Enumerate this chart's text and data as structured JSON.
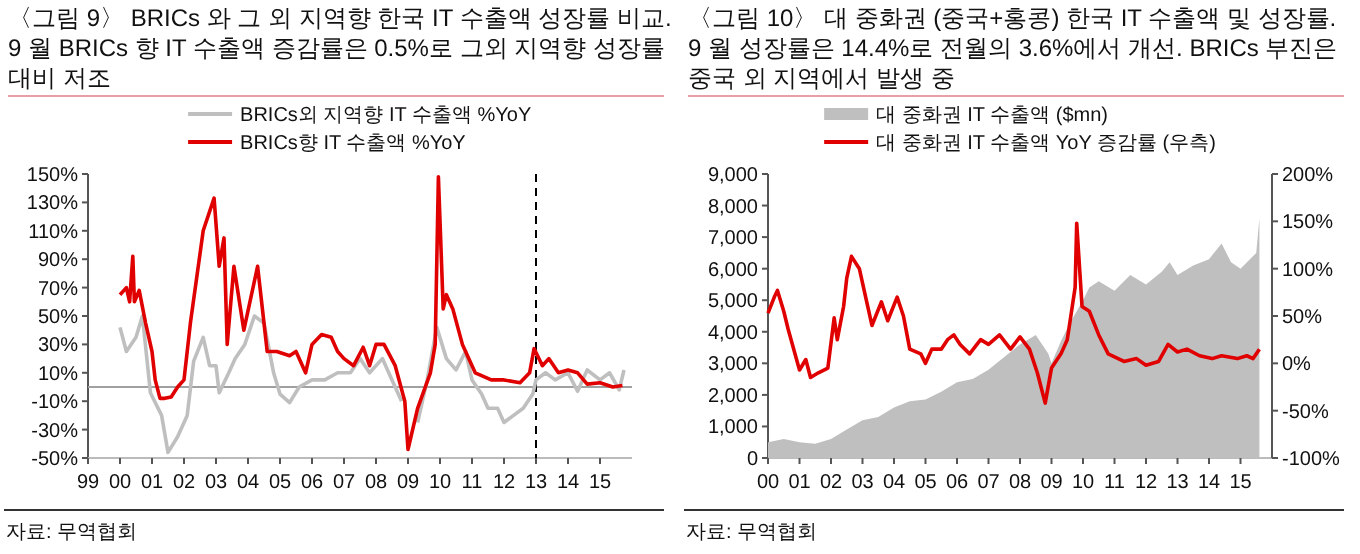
{
  "chart_data": [
    {
      "type": "line",
      "title": "〈그림 9〉 BRICs 와 그 외 지역향 한국 IT 수출액 성장률 비교. 9 월 BRICs 향 IT 수출액 증감률은 0.5%로 그외 지역향 성장률 대비 저조",
      "annotations": [
        "자료: 무역협회"
      ],
      "legend": "top",
      "xlim": [
        1999,
        2016
      ],
      "xticks": [
        {
          "value": 1999,
          "label": "99"
        },
        {
          "value": 2000,
          "label": "00"
        },
        {
          "value": 2001,
          "label": "01"
        },
        {
          "value": 2002,
          "label": "02"
        },
        {
          "value": 2003,
          "label": "03"
        },
        {
          "value": 2004,
          "label": "04"
        },
        {
          "value": 2005,
          "label": "05"
        },
        {
          "value": 2006,
          "label": "06"
        },
        {
          "value": 2007,
          "label": "07"
        },
        {
          "value": 2008,
          "label": "08"
        },
        {
          "value": 2009,
          "label": "09"
        },
        {
          "value": 2010,
          "label": "10"
        },
        {
          "value": 2011,
          "label": "11"
        },
        {
          "value": 2012,
          "label": "12"
        },
        {
          "value": 2013,
          "label": "13"
        },
        {
          "value": 2014,
          "label": "14"
        },
        {
          "value": 2015,
          "label": "15"
        }
      ],
      "ylim": [
        -50,
        150
      ],
      "yticks": [
        {
          "value": -50,
          "label": "-50%"
        },
        {
          "value": -30,
          "label": "-30%"
        },
        {
          "value": -10,
          "label": "-10%"
        },
        {
          "value": 10,
          "label": "10%"
        },
        {
          "value": 30,
          "label": "30%"
        },
        {
          "value": 50,
          "label": "50%"
        },
        {
          "value": 70,
          "label": "70%"
        },
        {
          "value": 90,
          "label": "90%"
        },
        {
          "value": 110,
          "label": "110%"
        },
        {
          "value": 130,
          "label": "130%"
        },
        {
          "value": 150,
          "label": "150%"
        }
      ],
      "ref_lines": [
        {
          "axis": "y",
          "value": 0,
          "color": "#a0a0a0"
        },
        {
          "axis": "x",
          "value": 2013,
          "color": "#000000",
          "line_style": "dashed"
        }
      ],
      "series": [
        {
          "name": "BRICs외 지역향 IT 수출액 %YoY",
          "color": "#bfbfbf",
          "x": [
            2000.0,
            2000.2,
            2000.5,
            2000.7,
            2000.95,
            2001.3,
            2001.5,
            2001.8,
            2002.1,
            2002.3,
            2002.6,
            2002.8,
            2003.0,
            2003.1,
            2003.4,
            2003.6,
            2003.9,
            2004.2,
            2004.5,
            2004.8,
            2005.0,
            2005.3,
            2005.6,
            2006.0,
            2006.4,
            2006.8,
            2007.2,
            2007.5,
            2007.8,
            2008.2,
            2008.5,
            2008.8,
            2009.0,
            2009.3,
            2009.6,
            2009.9,
            2010.2,
            2010.5,
            2010.8,
            2011.0,
            2011.3,
            2011.5,
            2011.8,
            2012.0,
            2012.3,
            2012.6,
            2012.9,
            2013.0,
            2013.3,
            2013.6,
            2014.0,
            2014.3,
            2014.6,
            2015.0,
            2015.3,
            2015.6,
            2015.75
          ],
          "values": [
            42,
            25,
            35,
            50,
            -4,
            -20,
            -46,
            -35,
            -20,
            18,
            35,
            15,
            15,
            -4,
            10,
            20,
            30,
            50,
            45,
            10,
            -5,
            -11,
            0,
            5,
            5,
            10,
            10,
            20,
            10,
            20,
            5,
            -10,
            null,
            -25,
            5,
            42,
            20,
            12,
            25,
            5,
            -5,
            -15,
            -15,
            -25,
            -20,
            -15,
            -5,
            5,
            10,
            5,
            10,
            -3,
            12,
            5,
            10,
            -2,
            12
          ]
        },
        {
          "name": "BRICs향 IT 수출액 %YoY",
          "color": "#e00000",
          "x": [
            2000.0,
            2000.2,
            2000.3,
            2000.4,
            2000.45,
            2000.6,
            2000.8,
            2001.0,
            2001.1,
            2001.25,
            2001.4,
            2001.6,
            2001.8,
            2002.0,
            2002.2,
            2002.6,
            2002.94,
            2003.1,
            2003.25,
            2003.35,
            2003.56,
            2003.87,
            2004.3,
            2004.6,
            2004.9,
            2005.3,
            2005.5,
            2005.8,
            2006.0,
            2006.3,
            2006.6,
            2006.8,
            2007.0,
            2007.3,
            2007.6,
            2007.8,
            2008.0,
            2008.25,
            2008.6,
            2008.9,
            2009.0,
            2009.3,
            2009.7,
            2009.85,
            2009.95,
            2010.1,
            2010.2,
            2010.4,
            2010.7,
            2011.1,
            2011.3,
            2011.6,
            2012.0,
            2012.5,
            2012.8,
            2012.94,
            2013.2,
            2013.4,
            2013.7,
            2014.0,
            2014.3,
            2014.6,
            2015.0,
            2015.4,
            2015.7
          ],
          "values": [
            65,
            70,
            60,
            92,
            60,
            68,
            45,
            25,
            5,
            -8,
            -8,
            -7,
            0,
            5,
            45,
            110,
            133,
            85,
            105,
            30,
            85,
            40,
            85,
            25,
            25,
            22,
            25,
            10,
            30,
            37,
            35,
            25,
            20,
            15,
            28,
            15,
            30,
            30,
            15,
            -10,
            -44,
            -15,
            10,
            30,
            148,
            55,
            65,
            55,
            30,
            10,
            8,
            5,
            5,
            3,
            10,
            27,
            15,
            20,
            10,
            12,
            10,
            2,
            3,
            0,
            1
          ]
        }
      ]
    },
    {
      "type": "line",
      "title": "〈그림 10〉 대 중화권 (중국+홍콩) 한국 IT 수출액 및 성장률. 9 월 성장률은 14.4%로 전월의 3.6%에서 개선. BRICs 부진은 중국 외 지역에서 발생 중",
      "annotations": [
        "자료: 무역협회"
      ],
      "legend": "top",
      "xlim": [
        2000,
        2016
      ],
      "xticks": [
        {
          "value": 2000,
          "label": "00"
        },
        {
          "value": 2001,
          "label": "01"
        },
        {
          "value": 2002,
          "label": "02"
        },
        {
          "value": 2003,
          "label": "03"
        },
        {
          "value": 2004,
          "label": "04"
        },
        {
          "value": 2005,
          "label": "05"
        },
        {
          "value": 2006,
          "label": "06"
        },
        {
          "value": 2007,
          "label": "07"
        },
        {
          "value": 2008,
          "label": "08"
        },
        {
          "value": 2009,
          "label": "09"
        },
        {
          "value": 2010,
          "label": "10"
        },
        {
          "value": 2011,
          "label": "11"
        },
        {
          "value": 2012,
          "label": "12"
        },
        {
          "value": 2013,
          "label": "13"
        },
        {
          "value": 2014,
          "label": "14"
        },
        {
          "value": 2015,
          "label": "15"
        }
      ],
      "ylim": [
        0,
        9000
      ],
      "yticks": [
        {
          "value": 0,
          "label": "0"
        },
        {
          "value": 1000,
          "label": "1,000"
        },
        {
          "value": 2000,
          "label": "2,000"
        },
        {
          "value": 3000,
          "label": "3,000"
        },
        {
          "value": 4000,
          "label": "4,000"
        },
        {
          "value": 5000,
          "label": "5,000"
        },
        {
          "value": 6000,
          "label": "6,000"
        },
        {
          "value": 7000,
          "label": "7,000"
        },
        {
          "value": 8000,
          "label": "8,000"
        },
        {
          "value": 9000,
          "label": "9,000"
        }
      ],
      "y2lim": [
        -100,
        200
      ],
      "y2ticks": [
        {
          "value": -100,
          "label": "-100%"
        },
        {
          "value": -50,
          "label": "-50%"
        },
        {
          "value": 0,
          "label": "0%"
        },
        {
          "value": 50,
          "label": "50%"
        },
        {
          "value": 100,
          "label": "100%"
        },
        {
          "value": 150,
          "label": "150%"
        },
        {
          "value": 200,
          "label": "200%"
        }
      ],
      "series": [
        {
          "name": "대 중화권 IT 수출액 ($mn)",
          "type": "area",
          "color": "#bfbfbf",
          "x": [
            2000.0,
            2000.5,
            2001.0,
            2001.5,
            2002.0,
            2002.5,
            2003.0,
            2003.5,
            2004.0,
            2004.5,
            2005.0,
            2005.5,
            2006.0,
            2006.5,
            2007.0,
            2007.5,
            2008.0,
            2008.5,
            2008.9,
            2009.0,
            2009.3,
            2009.6,
            2010.0,
            2010.2,
            2010.5,
            2011.0,
            2011.5,
            2012.0,
            2012.5,
            2012.75,
            2013.0,
            2013.5,
            2014.0,
            2014.4,
            2014.7,
            2015.0,
            2015.3,
            2015.5,
            2015.6
          ],
          "values": [
            500,
            600,
            500,
            450,
            600,
            900,
            1200,
            1300,
            1600,
            1800,
            1850,
            2100,
            2400,
            2500,
            2800,
            3200,
            3600,
            3900,
            3300,
            3000,
            3700,
            4300,
            5000,
            5400,
            5600,
            5300,
            5800,
            5500,
            5900,
            6200,
            5800,
            6100,
            6300,
            6800,
            6200,
            6000,
            6300,
            6500,
            7600
          ]
        },
        {
          "name": "대 중화권 IT 수출액 YoY 증감률 (우측)",
          "axis": "y2",
          "color": "#e00000",
          "x": [
            2000.0,
            2000.2,
            2000.3,
            2000.5,
            2000.64,
            2001.0,
            2001.2,
            2001.35,
            2001.6,
            2001.9,
            2002.1,
            2002.2,
            2002.4,
            2002.5,
            2002.65,
            2002.9,
            2003.1,
            2003.3,
            2003.6,
            2003.8,
            2004.1,
            2004.3,
            2004.5,
            2004.85,
            2005.0,
            2005.2,
            2005.5,
            2005.7,
            2005.9,
            2006.1,
            2006.4,
            2006.75,
            2007.0,
            2007.35,
            2007.7,
            2008.0,
            2008.3,
            2008.55,
            2008.8,
            2009.0,
            2009.3,
            2009.5,
            2009.75,
            2009.8,
            2009.97,
            2010.2,
            2010.5,
            2010.8,
            2011.3,
            2011.7,
            2012.0,
            2012.4,
            2012.7,
            2013.0,
            2013.3,
            2013.7,
            2014.1,
            2014.4,
            2014.9,
            2015.2,
            2015.4,
            2015.6
          ],
          "values": [
            53,
            70,
            77,
            55,
            36,
            -7,
            4,
            -15,
            -10,
            -5,
            48,
            25,
            60,
            90,
            113,
            100,
            70,
            40,
            65,
            45,
            70,
            50,
            15,
            10,
            0,
            15,
            15,
            25,
            30,
            20,
            10,
            25,
            20,
            30,
            15,
            28,
            15,
            -10,
            -42,
            -5,
            10,
            25,
            80,
            148,
            60,
            55,
            30,
            10,
            2,
            5,
            -2,
            2,
            20,
            12,
            15,
            8,
            5,
            8,
            5,
            8,
            5,
            15
          ]
        }
      ]
    }
  ]
}
